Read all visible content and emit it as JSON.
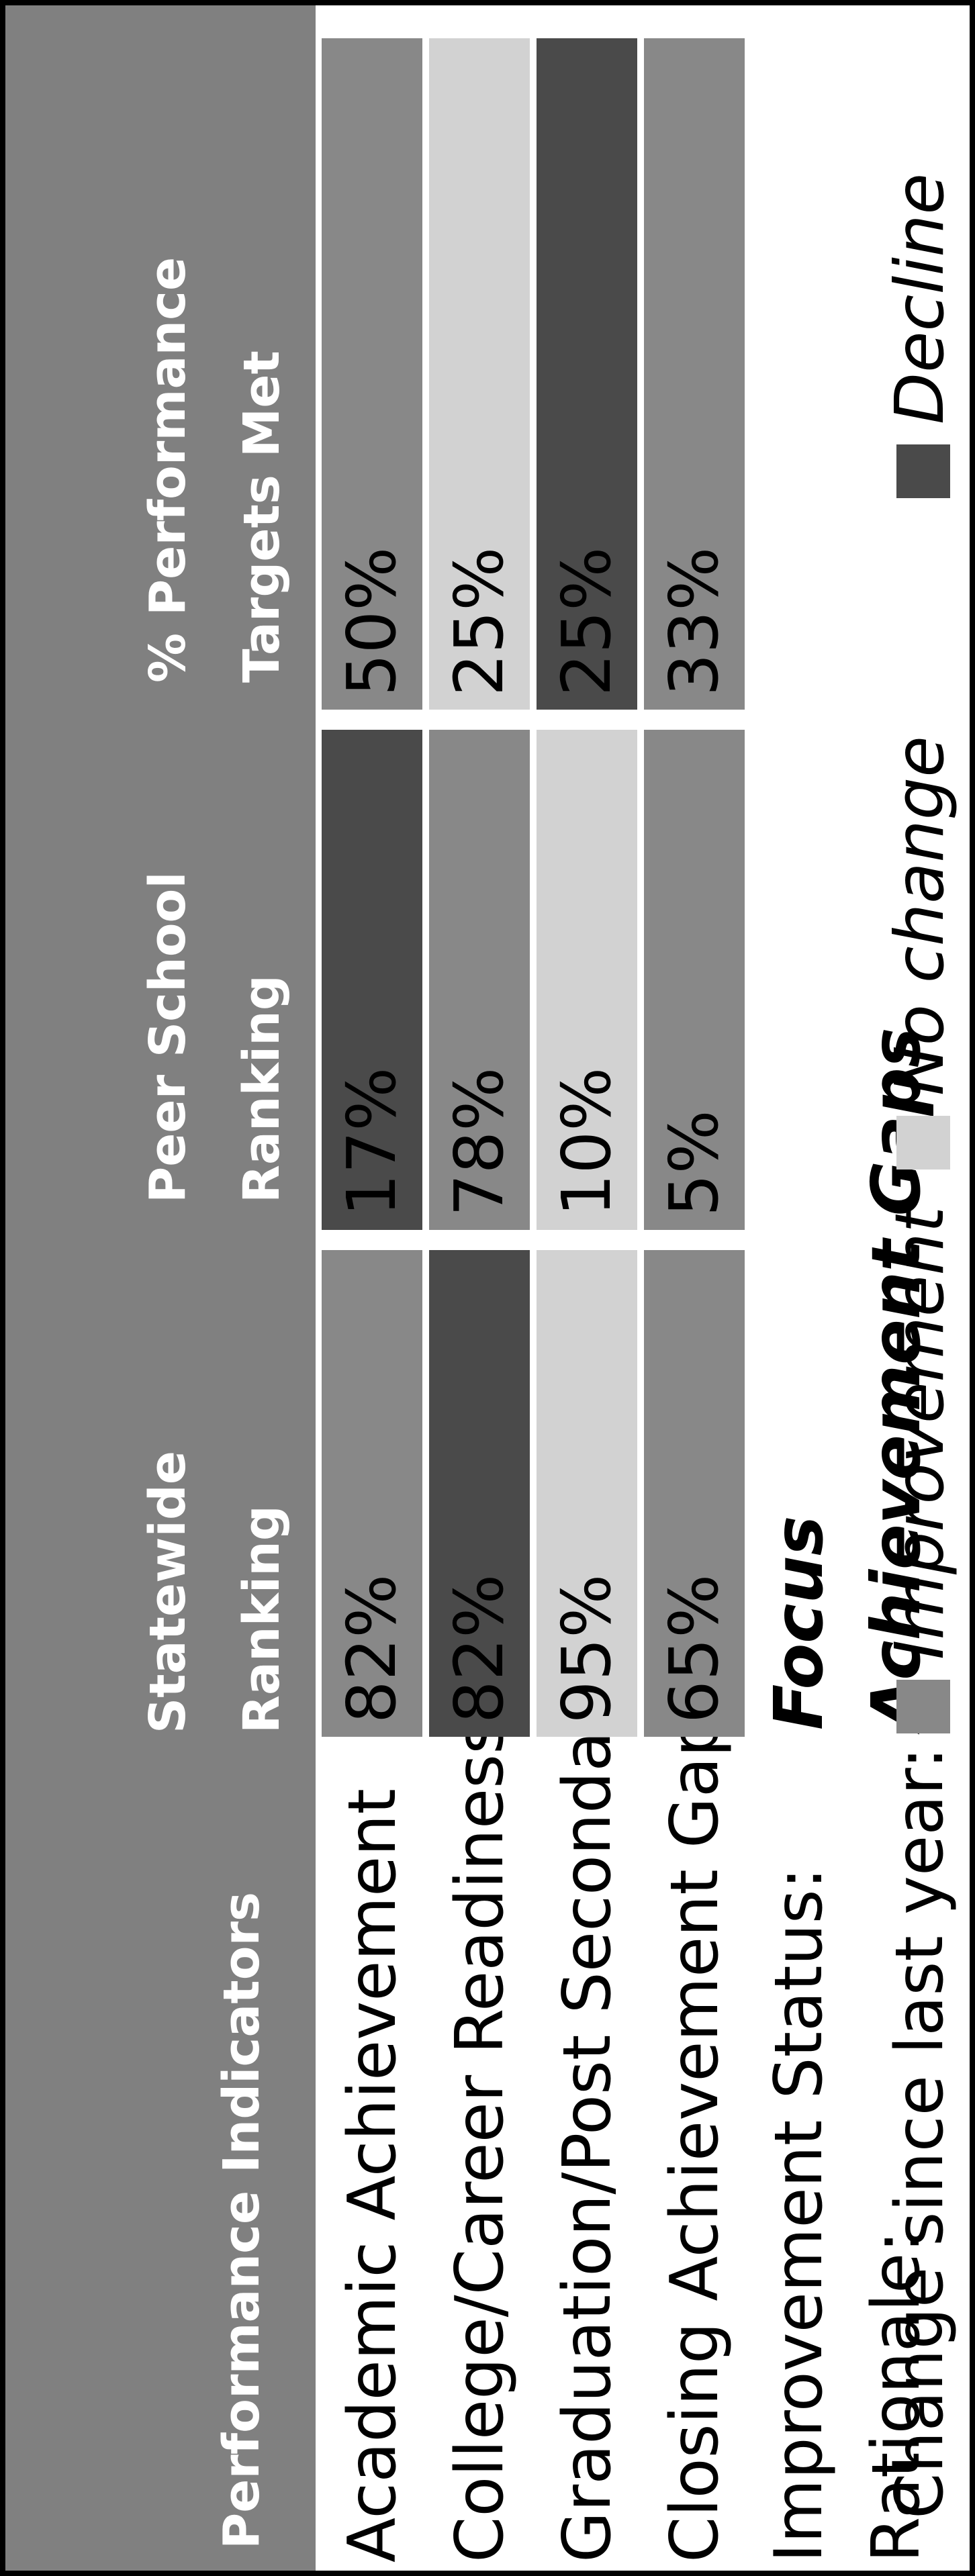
{
  "header": {
    "indicators": "Performance Indicators",
    "statewide_line1": "Statewide",
    "statewide_line2": "Ranking",
    "peer_line1": "Peer School",
    "peer_line2": "Ranking",
    "pct_line1": "% Performance",
    "pct_line2": "Targets Met"
  },
  "rows": [
    {
      "label": "Academic Achievement",
      "statewide": "82%",
      "statewide_change": "improvement",
      "peer": "17%",
      "peer_change": "decline",
      "pct": "50%",
      "pct_change": "improvement"
    },
    {
      "label": "College/Career Readiness",
      "statewide": "82%",
      "statewide_change": "decline",
      "peer": "78%",
      "peer_change": "improvement",
      "pct": "25%",
      "pct_change": "no change"
    },
    {
      "label": "Graduation/Post Secondary",
      "statewide": "95%",
      "statewide_change": "no change",
      "peer": "10%",
      "peer_change": "no change",
      "pct": "25%",
      "pct_change": "decline"
    },
    {
      "label": "Closing Achievement Gaps",
      "statewide": "65%",
      "statewide_change": "improvement",
      "peer": "5%",
      "peer_change": "improvement",
      "pct": "33%",
      "pct_change": "improvement"
    }
  ],
  "improvement_status": {
    "label": "Improvement Status:",
    "value": "Focus"
  },
  "rationale": {
    "label": "Rationale:",
    "value": "Achievement Gaps"
  },
  "legend": {
    "title": "Change since last year:",
    "improvement": "Improvement",
    "no_change": "No change",
    "decline": "Decline"
  },
  "colors": {
    "header_bg": "#808080",
    "improvement": "#888888",
    "no_change": "#d2d2d2",
    "decline": "#4a4a4a"
  }
}
